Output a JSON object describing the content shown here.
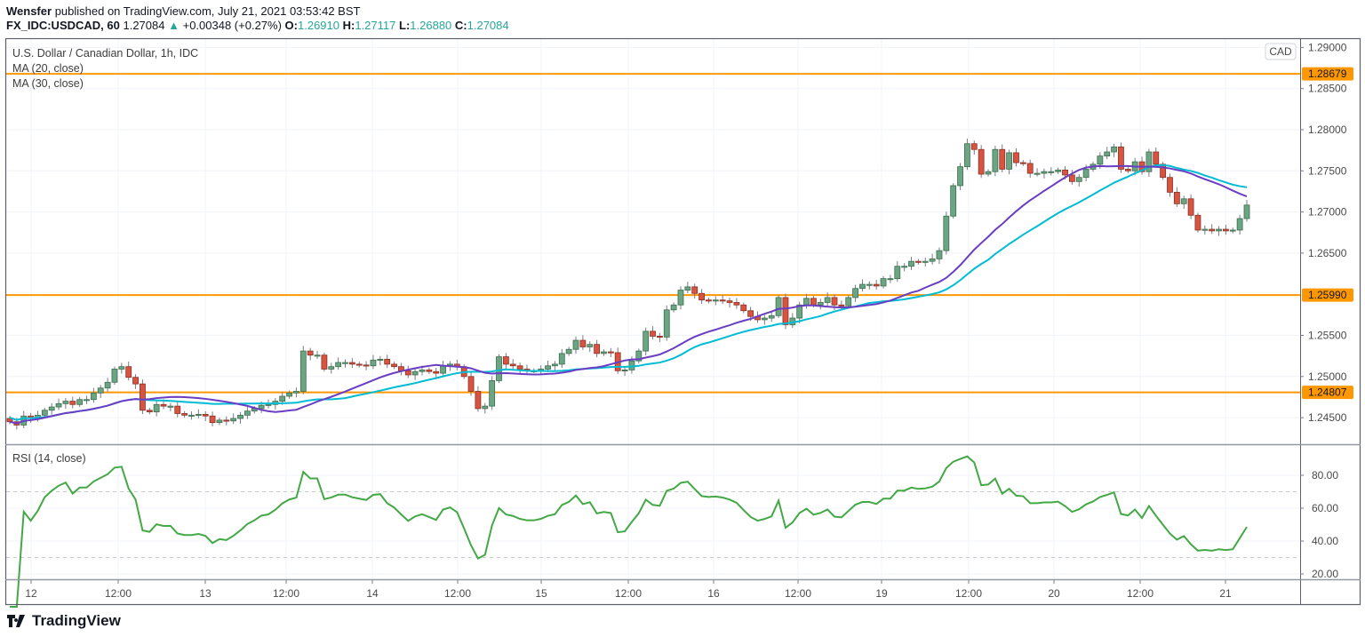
{
  "header": {
    "author": "Wensfer",
    "published_text": "published on TradingView.com, July 21, 2021 03:53:42 BST",
    "symbol": "FX_IDC:USDCAD, 60",
    "last": "1.27084",
    "change": "+0.00348 (+0.27%)",
    "open_label": "O:",
    "open": "1.26910",
    "high_label": "H:",
    "high": "1.27117",
    "low_label": "L:",
    "low": "1.26880",
    "close_label": "C:",
    "close": "1.27084"
  },
  "legend": {
    "title": "U.S. Dollar / Canadian Dollar, 1h, IDC",
    "ma20": "MA (20, close)",
    "ma30": "MA (30, close)",
    "rsi": "RSI (14, close)"
  },
  "currency_button": "CAD",
  "colors": {
    "up": "#6ba583",
    "down": "#d75442",
    "ma20": "#6a3dc4",
    "ma30": "#00bcd4",
    "rsi": "#43a845",
    "level": "#ff9800"
  },
  "chart_data": [
    {
      "type": "candlestick",
      "title": "U.S. Dollar / Canadian Dollar, 1h, IDC",
      "first_open": 1.2449,
      "closes": [
        1.2445,
        1.2441,
        1.2452,
        1.245,
        1.2453,
        1.2459,
        1.2463,
        1.2467,
        1.247,
        1.2466,
        1.2472,
        1.2472,
        1.248,
        1.2486,
        1.2493,
        1.2509,
        1.2512,
        1.2499,
        1.2491,
        1.2459,
        1.2457,
        1.2466,
        1.2464,
        1.2464,
        1.2455,
        1.2453,
        1.2453,
        1.2454,
        1.2452,
        1.2444,
        1.2447,
        1.2446,
        1.2449,
        1.2453,
        1.2458,
        1.2461,
        1.2465,
        1.2466,
        1.247,
        1.2476,
        1.248,
        1.2482,
        1.2531,
        1.2526,
        1.2526,
        1.2509,
        1.2512,
        1.2517,
        1.2517,
        1.2515,
        1.2514,
        1.2513,
        1.252,
        1.2521,
        1.2515,
        1.2512,
        1.2507,
        1.2502,
        1.2506,
        1.2508,
        1.2506,
        1.2504,
        1.2513,
        1.2515,
        1.2512,
        1.25,
        1.2482,
        1.2461,
        1.2464,
        1.2495,
        1.2524,
        1.2515,
        1.2513,
        1.2509,
        1.2507,
        1.2507,
        1.2509,
        1.2513,
        1.2515,
        1.2528,
        1.2533,
        1.2544,
        1.2536,
        1.2539,
        1.2528,
        1.253,
        1.2529,
        1.2507,
        1.2508,
        1.2519,
        1.2531,
        1.2555,
        1.2549,
        1.2548,
        1.2581,
        1.2587,
        1.2605,
        1.2609,
        1.2601,
        1.2593,
        1.2592,
        1.2593,
        1.2592,
        1.259,
        1.2587,
        1.258,
        1.2573,
        1.2569,
        1.2571,
        1.2574,
        1.2596,
        1.2563,
        1.2571,
        1.2587,
        1.2595,
        1.2587,
        1.259,
        1.2596,
        1.2587,
        1.2586,
        1.2596,
        1.2607,
        1.2612,
        1.2612,
        1.261,
        1.2619,
        1.2619,
        1.2634,
        1.2634,
        1.264,
        1.2639,
        1.264,
        1.2643,
        1.2653,
        1.2695,
        1.2732,
        1.2755,
        1.2783,
        1.2776,
        1.2746,
        1.2749,
        1.2776,
        1.2752,
        1.2772,
        1.276,
        1.2759,
        1.2747,
        1.2747,
        1.2749,
        1.2749,
        1.2751,
        1.2745,
        1.2737,
        1.2742,
        1.2752,
        1.2758,
        1.2768,
        1.2773,
        1.2779,
        1.2752,
        1.275,
        1.2761,
        1.2749,
        1.2773,
        1.2758,
        1.2742,
        1.2724,
        1.271,
        1.2716,
        1.2696,
        1.2678,
        1.2679,
        1.2677,
        1.2679,
        1.2677,
        1.2678,
        1.2692,
        1.27084
      ],
      "indicators": [
        "MA (20, close)",
        "MA (30, close)"
      ],
      "levels": [
        {
          "value": 1.28679,
          "label": "1.28679"
        },
        {
          "value": 1.2599,
          "label": "1.25990"
        },
        {
          "value": 1.24807,
          "label": "1.24807"
        }
      ],
      "y_ticks": [
        "1.29000",
        "1.28500",
        "1.28000",
        "1.27500",
        "1.27000",
        "1.26500",
        "1.25500",
        "1.25000",
        "1.24500"
      ],
      "ylim": [
        1.242,
        1.291
      ],
      "grid": true
    },
    {
      "type": "line",
      "title": "RSI (14, close)",
      "y_ticks": [
        "80.00",
        "60.00",
        "40.00",
        "20.00"
      ],
      "bands": [
        70,
        30
      ],
      "ylim": [
        17,
        97
      ]
    }
  ],
  "x_ticks": [
    "12",
    "12:00",
    "13",
    "12:00",
    "14",
    "12:00",
    "15",
    "12:00",
    "16",
    "12:00",
    "19",
    "12:00",
    "20",
    "12:00",
    "21"
  ],
  "branding": "TradingView"
}
